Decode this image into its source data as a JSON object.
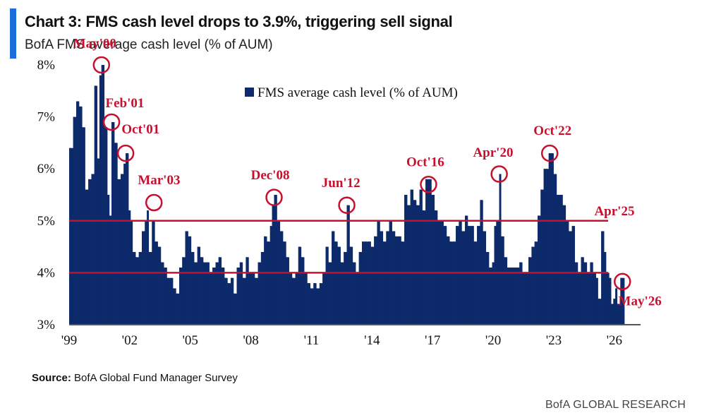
{
  "header": {
    "title": "Chart 3: FMS cash level drops to 3.9%, triggering sell signal",
    "subtitle": "BofA FMS average cash level (% of AUM)"
  },
  "footer": {
    "source_label": "Source:",
    "source_text": "BofA Global Fund Manager Survey",
    "brand": "BofA GLOBAL RESEARCH"
  },
  "colors": {
    "bars": "#0d2a6b",
    "threshold_lines": "#c8102e",
    "annotations": "#c8102e",
    "accent": "#1c6fd8"
  },
  "chart_data": {
    "type": "bar",
    "title": "",
    "xlabel": "",
    "ylabel": "",
    "legend": {
      "label": "FMS average cash level (% of AUM)",
      "position": "top-center"
    },
    "ylim": [
      3,
      8
    ],
    "yticks": [
      "3%",
      "4%",
      "5%",
      "6%",
      "7%",
      "8%"
    ],
    "xlim": [
      1999.0,
      2027.3
    ],
    "xticks": [
      {
        "x": 1999,
        "label": "'99"
      },
      {
        "x": 2002,
        "label": "'02"
      },
      {
        "x": 2005,
        "label": "'05"
      },
      {
        "x": 2008,
        "label": "'08"
      },
      {
        "x": 2011,
        "label": "'11"
      },
      {
        "x": 2014,
        "label": "'14"
      },
      {
        "x": 2017,
        "label": "'17"
      },
      {
        "x": 2020,
        "label": "'20"
      },
      {
        "x": 2023,
        "label": "'23"
      },
      {
        "x": 2026,
        "label": "'26"
      }
    ],
    "grid": false,
    "thresholds": [
      5.0,
      4.0
    ],
    "series": [
      {
        "name": "FMS average cash level (% of AUM)",
        "points": [
          [
            1999.0,
            6.4
          ],
          [
            1999.2,
            7.0
          ],
          [
            1999.35,
            7.3
          ],
          [
            1999.5,
            7.2
          ],
          [
            1999.65,
            6.8
          ],
          [
            1999.8,
            5.6
          ],
          [
            1999.95,
            5.8
          ],
          [
            2000.1,
            5.9
          ],
          [
            2000.25,
            7.6
          ],
          [
            2000.4,
            6.2
          ],
          [
            2000.5,
            7.8
          ],
          [
            2000.6,
            8.0
          ],
          [
            2000.75,
            6.8
          ],
          [
            2000.9,
            5.5
          ],
          [
            2001.0,
            5.1
          ],
          [
            2001.1,
            6.9
          ],
          [
            2001.25,
            6.5
          ],
          [
            2001.4,
            5.8
          ],
          [
            2001.55,
            5.9
          ],
          [
            2001.7,
            6.1
          ],
          [
            2001.8,
            6.3
          ],
          [
            2001.95,
            5.2
          ],
          [
            2002.05,
            5.0
          ],
          [
            2002.15,
            4.4
          ],
          [
            2002.3,
            4.3
          ],
          [
            2002.45,
            4.4
          ],
          [
            2002.6,
            4.8
          ],
          [
            2002.75,
            5.0
          ],
          [
            2002.85,
            5.2
          ],
          [
            2002.95,
            4.4
          ],
          [
            2003.1,
            5.0
          ],
          [
            2003.25,
            4.6
          ],
          [
            2003.4,
            4.5
          ],
          [
            2003.55,
            4.2
          ],
          [
            2003.7,
            4.1
          ],
          [
            2003.85,
            3.9
          ],
          [
            2004.0,
            3.9
          ],
          [
            2004.15,
            3.7
          ],
          [
            2004.3,
            3.6
          ],
          [
            2004.45,
            4.1
          ],
          [
            2004.6,
            4.3
          ],
          [
            2004.75,
            4.8
          ],
          [
            2004.9,
            4.7
          ],
          [
            2005.05,
            4.4
          ],
          [
            2005.2,
            4.2
          ],
          [
            2005.35,
            4.5
          ],
          [
            2005.5,
            4.3
          ],
          [
            2005.65,
            4.2
          ],
          [
            2005.8,
            4.2
          ],
          [
            2005.95,
            4.0
          ],
          [
            2006.1,
            4.1
          ],
          [
            2006.25,
            4.2
          ],
          [
            2006.4,
            4.3
          ],
          [
            2006.55,
            4.1
          ],
          [
            2006.7,
            3.9
          ],
          [
            2006.85,
            3.8
          ],
          [
            2007.0,
            3.9
          ],
          [
            2007.15,
            3.6
          ],
          [
            2007.3,
            4.1
          ],
          [
            2007.45,
            4.2
          ],
          [
            2007.6,
            3.9
          ],
          [
            2007.75,
            4.3
          ],
          [
            2007.9,
            4.0
          ],
          [
            2008.05,
            4.0
          ],
          [
            2008.2,
            3.9
          ],
          [
            2008.35,
            4.2
          ],
          [
            2008.5,
            4.4
          ],
          [
            2008.65,
            4.7
          ],
          [
            2008.8,
            4.6
          ],
          [
            2008.95,
            4.9
          ],
          [
            2009.05,
            5.3
          ],
          [
            2009.15,
            5.5
          ],
          [
            2009.3,
            5.0
          ],
          [
            2009.45,
            4.8
          ],
          [
            2009.6,
            4.6
          ],
          [
            2009.75,
            4.3
          ],
          [
            2009.9,
            4.0
          ],
          [
            2010.05,
            3.9
          ],
          [
            2010.2,
            4.0
          ],
          [
            2010.35,
            4.5
          ],
          [
            2010.5,
            4.3
          ],
          [
            2010.65,
            4.0
          ],
          [
            2010.8,
            3.8
          ],
          [
            2010.95,
            3.7
          ],
          [
            2011.1,
            3.8
          ],
          [
            2011.25,
            3.7
          ],
          [
            2011.4,
            3.8
          ],
          [
            2011.55,
            4.0
          ],
          [
            2011.7,
            4.5
          ],
          [
            2011.85,
            4.2
          ],
          [
            2012.0,
            4.8
          ],
          [
            2012.15,
            4.6
          ],
          [
            2012.3,
            4.5
          ],
          [
            2012.45,
            4.2
          ],
          [
            2012.6,
            4.4
          ],
          [
            2012.75,
            5.3
          ],
          [
            2012.9,
            4.5
          ],
          [
            2013.05,
            4.2
          ],
          [
            2013.2,
            4.0
          ],
          [
            2013.35,
            4.4
          ],
          [
            2013.5,
            4.6
          ],
          [
            2013.65,
            4.6
          ],
          [
            2013.8,
            4.6
          ],
          [
            2013.95,
            4.5
          ],
          [
            2014.1,
            4.7
          ],
          [
            2014.25,
            5.0
          ],
          [
            2014.4,
            4.8
          ],
          [
            2014.55,
            4.6
          ],
          [
            2014.7,
            4.8
          ],
          [
            2014.85,
            5.0
          ],
          [
            2015.0,
            4.8
          ],
          [
            2015.15,
            4.7
          ],
          [
            2015.3,
            4.7
          ],
          [
            2015.45,
            4.6
          ],
          [
            2015.6,
            5.5
          ],
          [
            2015.75,
            5.3
          ],
          [
            2015.9,
            5.6
          ],
          [
            2016.05,
            5.4
          ],
          [
            2016.2,
            5.3
          ],
          [
            2016.35,
            5.6
          ],
          [
            2016.5,
            5.2
          ],
          [
            2016.65,
            5.8
          ],
          [
            2016.8,
            5.8
          ],
          [
            2016.95,
            5.5
          ],
          [
            2017.1,
            5.2
          ],
          [
            2017.25,
            5.0
          ],
          [
            2017.4,
            5.0
          ],
          [
            2017.55,
            4.9
          ],
          [
            2017.7,
            4.7
          ],
          [
            2017.85,
            4.6
          ],
          [
            2018.0,
            4.6
          ],
          [
            2018.15,
            4.9
          ],
          [
            2018.3,
            5.0
          ],
          [
            2018.45,
            4.8
          ],
          [
            2018.6,
            5.1
          ],
          [
            2018.75,
            4.9
          ],
          [
            2018.9,
            4.9
          ],
          [
            2019.05,
            4.6
          ],
          [
            2019.2,
            4.9
          ],
          [
            2019.35,
            5.4
          ],
          [
            2019.5,
            4.8
          ],
          [
            2019.65,
            4.4
          ],
          [
            2019.8,
            4.1
          ],
          [
            2019.95,
            4.2
          ],
          [
            2020.05,
            4.9
          ],
          [
            2020.15,
            5.0
          ],
          [
            2020.3,
            5.9
          ],
          [
            2020.4,
            4.7
          ],
          [
            2020.55,
            4.3
          ],
          [
            2020.7,
            4.1
          ],
          [
            2020.85,
            4.1
          ],
          [
            2021.0,
            4.1
          ],
          [
            2021.15,
            4.1
          ],
          [
            2021.3,
            4.2
          ],
          [
            2021.45,
            4.0
          ],
          [
            2021.6,
            4.0
          ],
          [
            2021.75,
            4.3
          ],
          [
            2021.9,
            4.5
          ],
          [
            2022.05,
            4.6
          ],
          [
            2022.2,
            5.1
          ],
          [
            2022.35,
            5.6
          ],
          [
            2022.5,
            6.0
          ],
          [
            2022.6,
            6.0
          ],
          [
            2022.75,
            6.3
          ],
          [
            2022.85,
            6.3
          ],
          [
            2023.0,
            5.9
          ],
          [
            2023.15,
            5.5
          ],
          [
            2023.3,
            5.5
          ],
          [
            2023.45,
            5.3
          ],
          [
            2023.6,
            5.0
          ],
          [
            2023.75,
            4.8
          ],
          [
            2023.9,
            4.9
          ],
          [
            2024.05,
            4.2
          ],
          [
            2024.2,
            4.0
          ],
          [
            2024.35,
            4.3
          ],
          [
            2024.5,
            4.2
          ],
          [
            2024.65,
            4.0
          ],
          [
            2024.8,
            4.2
          ],
          [
            2024.95,
            4.0
          ],
          [
            2025.1,
            3.9
          ],
          [
            2025.2,
            3.5
          ],
          [
            2025.35,
            4.8
          ],
          [
            2025.5,
            4.4
          ],
          [
            2025.6,
            4.0
          ],
          [
            2025.75,
            3.9
          ],
          [
            2025.85,
            3.4
          ],
          [
            2025.95,
            3.5
          ],
          [
            2026.05,
            3.7
          ],
          [
            2026.15,
            3.4
          ],
          [
            2026.3,
            3.9
          ]
        ]
      }
    ],
    "annotations": [
      {
        "x": 2000.6,
        "y": 8.0,
        "label": "May'00",
        "tx": 1999.2,
        "ty": 8.4
      },
      {
        "x": 2001.1,
        "y": 6.9,
        "label": "Feb'01",
        "tx": 2000.8,
        "ty": 7.25
      },
      {
        "x": 2001.8,
        "y": 6.3,
        "label": "Oct'01",
        "tx": 2001.6,
        "ty": 6.75
      },
      {
        "x": 2003.2,
        "y": 5.35,
        "label": "Mar'03",
        "tx": 2002.4,
        "ty": 5.77
      },
      {
        "x": 2009.15,
        "y": 5.45,
        "label": "Dec'08",
        "tx": 2008.0,
        "ty": 5.87
      },
      {
        "x": 2012.75,
        "y": 5.3,
        "label": "Jun'12",
        "tx": 2011.5,
        "ty": 5.72
      },
      {
        "x": 2016.8,
        "y": 5.7,
        "label": "Oct'16",
        "tx": 2015.7,
        "ty": 6.12
      },
      {
        "x": 2020.3,
        "y": 5.9,
        "label": "Apr'20",
        "tx": 2019.0,
        "ty": 6.3
      },
      {
        "x": 2022.8,
        "y": 6.3,
        "label": "Oct'22",
        "tx": 2022.0,
        "ty": 6.72
      },
      {
        "x": 2026.4,
        "y": 3.83,
        "label": "May'26",
        "tx": 2026.2,
        "ty": 3.44
      }
    ],
    "line_labels": [
      {
        "label": "Apr'25",
        "at": 5.0,
        "x": 2024.8
      }
    ]
  }
}
